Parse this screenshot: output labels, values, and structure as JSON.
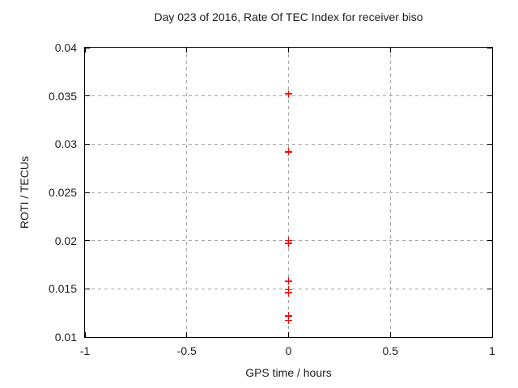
{
  "window": {
    "kind": "gnuplot-chart-image",
    "background": "#ffffff"
  },
  "colors": {
    "marker": "#ff0000",
    "grid": "#a6a6a6",
    "border": "#000000",
    "text": "#1c1c1c"
  },
  "chart_data": {
    "type": "scatter",
    "title": "Day 023 of 2016, Rate Of TEC Index for receiver biso",
    "xlabel": "GPS time / hours",
    "ylabel": "ROTI / TECUs",
    "xlim": [
      -1,
      1
    ],
    "ylim": [
      0.01,
      0.04
    ],
    "xticks": [
      -1,
      -0.5,
      0,
      0.5,
      1
    ],
    "xtick_labels": [
      "-1",
      "-0.5",
      "0",
      "0.5",
      "1"
    ],
    "yticks": [
      0.01,
      0.015,
      0.02,
      0.025,
      0.03,
      0.035,
      0.04
    ],
    "ytick_labels": [
      "0.01",
      "0.015",
      "0.02",
      "0.025",
      "0.03",
      "0.035",
      "0.04"
    ],
    "grid": true,
    "grid_style": "dashed",
    "legend": false,
    "marker": "plus",
    "series": [
      {
        "name": "ROTI",
        "points": [
          {
            "x": 0,
            "y": 0.0352
          },
          {
            "x": 0,
            "y": 0.0292
          },
          {
            "x": 0,
            "y": 0.02
          },
          {
            "x": 0,
            "y": 0.0197
          },
          {
            "x": 0,
            "y": 0.0158
          },
          {
            "x": 0,
            "y": 0.0149
          },
          {
            "x": 0,
            "y": 0.0146
          },
          {
            "x": 0,
            "y": 0.0122
          },
          {
            "x": 0,
            "y": 0.0117
          }
        ]
      }
    ]
  }
}
